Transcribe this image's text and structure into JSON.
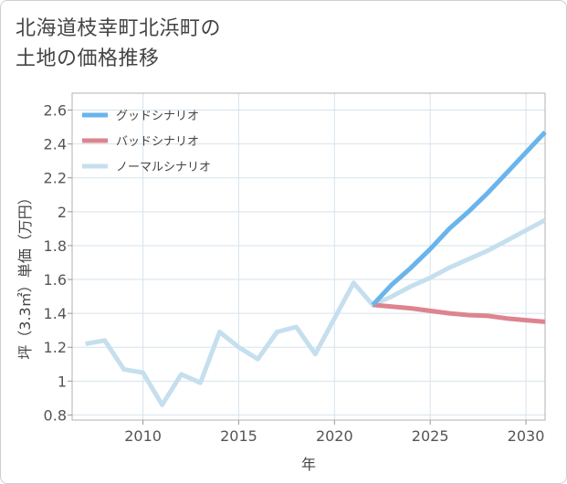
{
  "title_line1": "北海道枝幸町北浜町の",
  "title_line2": "土地の価格推移",
  "chart_data": {
    "type": "line",
    "xlabel": "年",
    "ylabel": "坪（3.3㎡）単価（万円）",
    "xlim": [
      2006.3,
      2031
    ],
    "ylim": [
      0.77,
      2.7
    ],
    "xticks": [
      2010,
      2015,
      2020,
      2025,
      2030
    ],
    "yticks": [
      0.8,
      1,
      1.2,
      1.4,
      1.6,
      1.8,
      2,
      2.2,
      2.4,
      2.6
    ],
    "yticklabels": [
      "0.8",
      "1",
      "1.2",
      "1.4",
      "1.6",
      "1.8",
      "2",
      "2.2",
      "2.4",
      "2.6"
    ],
    "grid": true,
    "legend_position": "top-left",
    "series": [
      {
        "name": "グッドシナリオ",
        "color": "#6ab4ec",
        "x": [
          2022,
          2023,
          2024,
          2025,
          2026,
          2027,
          2028,
          2029,
          2030,
          2031
        ],
        "values": [
          1.45,
          1.57,
          1.67,
          1.78,
          1.9,
          2.0,
          2.11,
          2.23,
          2.35,
          2.47
        ]
      },
      {
        "name": "バッドシナリオ",
        "color": "#dd848f",
        "x": [
          2022,
          2023,
          2024,
          2025,
          2026,
          2027,
          2028,
          2029,
          2030,
          2031
        ],
        "values": [
          1.45,
          1.44,
          1.43,
          1.415,
          1.4,
          1.39,
          1.385,
          1.37,
          1.36,
          1.35
        ]
      },
      {
        "name": "ノーマルシナリオ",
        "color": "#c5dfee",
        "x": [
          2007,
          2008,
          2009,
          2010,
          2011,
          2012,
          2013,
          2014,
          2015,
          2016,
          2017,
          2018,
          2019,
          2020,
          2021,
          2022,
          2023,
          2024,
          2025,
          2026,
          2027,
          2028,
          2029,
          2030,
          2031
        ],
        "values": [
          1.22,
          1.24,
          1.07,
          1.05,
          0.86,
          1.04,
          0.99,
          1.29,
          1.2,
          1.13,
          1.29,
          1.32,
          1.16,
          1.37,
          1.58,
          1.45,
          1.5,
          1.56,
          1.61,
          1.67,
          1.72,
          1.77,
          1.83,
          1.89,
          1.95
        ]
      }
    ]
  }
}
